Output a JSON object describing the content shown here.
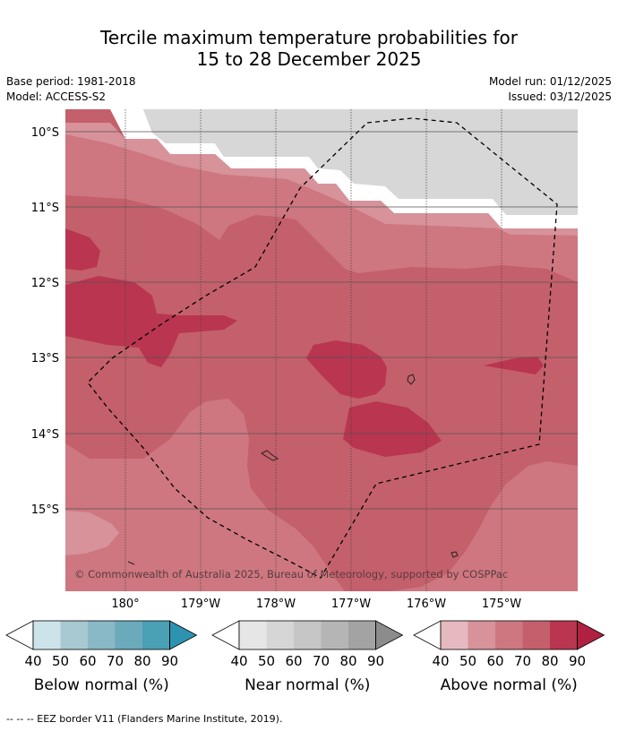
{
  "title": {
    "line1": "Tercile maximum temperature probabilities for",
    "line2": "15 to 28 December 2025"
  },
  "meta": {
    "base_period": "Base period: 1981-2018",
    "model": "Model: ACCESS-S2",
    "model_run": "Model run: 01/12/2025",
    "issued": "Issued: 03/12/2025"
  },
  "map": {
    "lat_labels": [
      "10°S",
      "11°S",
      "12°S",
      "13°S",
      "14°S",
      "15°S"
    ],
    "lon_labels": [
      "180°",
      "179°W",
      "178°W",
      "177°W",
      "176°W",
      "175°W"
    ],
    "copyright": "© Commonwealth of Australia 2025, Bureau of Meteorology, supported by COSPPac"
  },
  "legends": [
    {
      "label": "Below normal (%)",
      "ticks": [
        "40",
        "50",
        "60",
        "70",
        "80",
        "90"
      ],
      "colors": [
        "#ffffff",
        "#cce3ea",
        "#a8c9d2",
        "#89b8c6",
        "#6aaabb",
        "#4aa0b5",
        "#2e93b0"
      ]
    },
    {
      "label": "Near normal (%)",
      "ticks": [
        "40",
        "50",
        "60",
        "70",
        "80",
        "90"
      ],
      "colors": [
        "#ffffff",
        "#e6e6e6",
        "#d6d6d6",
        "#c6c6c6",
        "#b5b5b5",
        "#a3a3a3",
        "#8c8c8c"
      ]
    },
    {
      "label": "Above normal (%)",
      "ticks": [
        "40",
        "50",
        "60",
        "70",
        "80",
        "90"
      ],
      "colors": [
        "#ffffff",
        "#e5b9bf",
        "#d7929a",
        "#ce7780",
        "#c4606b",
        "#b93550",
        "#b02040"
      ]
    }
  ],
  "footer": "--  --  -- EEZ border V11 (Flanders Marine Institute, 2019)."
}
